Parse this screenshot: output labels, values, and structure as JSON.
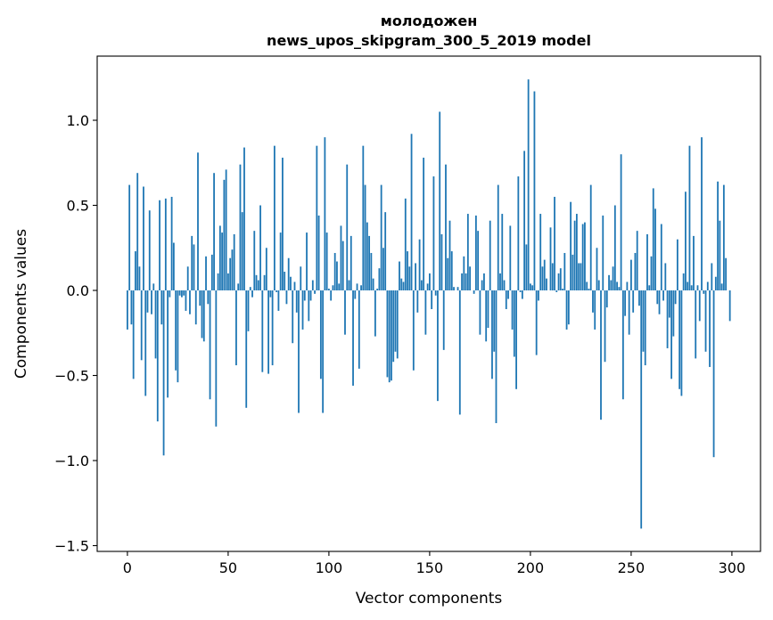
{
  "chart_data": {
    "type": "bar",
    "title": [
      "молодожен",
      "news_upos_skipgram_300_5_2019 model"
    ],
    "xlabel": "Vector components",
    "ylabel": "Components values",
    "xlim": [
      -15,
      314.2
    ],
    "ylim": [
      -1.534,
      1.377
    ],
    "xticks": [
      0,
      50,
      100,
      150,
      200,
      250,
      300
    ],
    "xtick_labels": [
      "0",
      "50",
      "100",
      "150",
      "200",
      "250",
      "300"
    ],
    "yticks": [
      1.0,
      0.5,
      0.0,
      -0.5,
      -1.0,
      -1.5
    ],
    "ytick_labels": [
      "1.0",
      "0.5",
      "0.0",
      "−0.5",
      "−1.0",
      "−1.5"
    ],
    "grid": false,
    "bar_color": "#1f77b4",
    "values": [
      -0.23,
      0.62,
      -0.2,
      -0.52,
      0.23,
      0.69,
      0.14,
      -0.41,
      0.61,
      -0.62,
      -0.13,
      0.47,
      -0.14,
      0.04,
      -0.4,
      -0.77,
      0.53,
      -0.2,
      -0.97,
      0.54,
      -0.63,
      -0.04,
      0.55,
      0.28,
      -0.47,
      -0.54,
      -0.03,
      -0.04,
      -0.03,
      -0.12,
      0.14,
      -0.14,
      0.32,
      0.27,
      -0.2,
      0.81,
      -0.09,
      -0.28,
      -0.3,
      0.2,
      -0.08,
      -0.64,
      0.21,
      0.69,
      -0.8,
      0.1,
      0.38,
      0.34,
      0.65,
      0.71,
      0.1,
      0.19,
      0.24,
      0.33,
      -0.44,
      0.04,
      0.74,
      0.46,
      0.84,
      -0.69,
      -0.24,
      0.02,
      -0.04,
      0.35,
      0.09,
      0.06,
      0.5,
      -0.48,
      0.09,
      0.25,
      -0.49,
      -0.04,
      -0.44,
      0.85,
      -0.01,
      -0.12,
      0.34,
      0.78,
      0.11,
      -0.08,
      0.19,
      0.08,
      -0.31,
      0.05,
      -0.13,
      -0.72,
      0.14,
      -0.23,
      -0.06,
      0.34,
      -0.18,
      -0.06,
      0.06,
      -0.02,
      0.85,
      0.44,
      -0.52,
      -0.72,
      0.9,
      0.34,
      0.01,
      -0.06,
      0.03,
      0.22,
      0.17,
      0.04,
      0.38,
      0.29,
      -0.26,
      0.74,
      0.06,
      0.32,
      -0.56,
      -0.05,
      0.04,
      -0.46,
      0.03,
      0.85,
      0.62,
      0.4,
      0.32,
      0.22,
      0.07,
      -0.27,
      0.01,
      0.13,
      0.62,
      0.25,
      0.46,
      -0.51,
      -0.54,
      -0.53,
      -0.42,
      -0.36,
      -0.4,
      0.17,
      0.07,
      0.05,
      0.54,
      0.23,
      0.14,
      0.92,
      -0.47,
      0.16,
      -0.13,
      0.3,
      0.06,
      0.78,
      -0.26,
      0.04,
      0.1,
      -0.11,
      0.67,
      -0.03,
      -0.65,
      1.05,
      0.33,
      -0.35,
      0.74,
      0.19,
      0.41,
      0.23,
      0.02,
      0.0,
      0.02,
      -0.73,
      0.1,
      0.2,
      0.1,
      0.45,
      0.14,
      0.0,
      -0.02,
      0.44,
      0.35,
      -0.26,
      0.06,
      0.1,
      -0.3,
      -0.22,
      0.41,
      -0.52,
      -0.36,
      -0.78,
      0.62,
      0.1,
      0.45,
      0.06,
      -0.11,
      -0.05,
      0.38,
      -0.23,
      -0.39,
      -0.58,
      0.67,
      -0.01,
      -0.05,
      0.82,
      0.27,
      1.24,
      0.04,
      0.03,
      1.17,
      -0.38,
      -0.06,
      0.45,
      0.14,
      0.18,
      0.07,
      0.0,
      0.37,
      0.16,
      0.55,
      -0.01,
      0.1,
      0.13,
      0.01,
      0.22,
      -0.23,
      -0.2,
      0.52,
      0.21,
      0.41,
      0.45,
      0.16,
      0.16,
      0.39,
      0.4,
      0.05,
      0.01,
      0.62,
      -0.13,
      -0.23,
      0.25,
      0.06,
      -0.76,
      0.44,
      -0.42,
      -0.1,
      0.09,
      0.06,
      0.14,
      0.5,
      0.05,
      0.02,
      0.8,
      -0.64,
      -0.15,
      0.05,
      -0.26,
      0.18,
      -0.13,
      0.22,
      0.35,
      -0.09,
      -1.4,
      -0.36,
      -0.44,
      0.33,
      0.03,
      0.2,
      0.6,
      0.48,
      -0.08,
      -0.14,
      0.39,
      -0.06,
      0.16,
      -0.34,
      -0.16,
      -0.52,
      -0.27,
      -0.08,
      0.3,
      -0.58,
      -0.62,
      0.1,
      0.58,
      0.05,
      0.85,
      0.03,
      0.32,
      -0.4,
      0.03,
      -0.18,
      0.9,
      -0.02,
      -0.36,
      0.05,
      -0.45,
      0.16,
      -0.98,
      0.08,
      0.64,
      0.41,
      0.04,
      0.62,
      0.19,
      0.0,
      -0.18
    ]
  }
}
